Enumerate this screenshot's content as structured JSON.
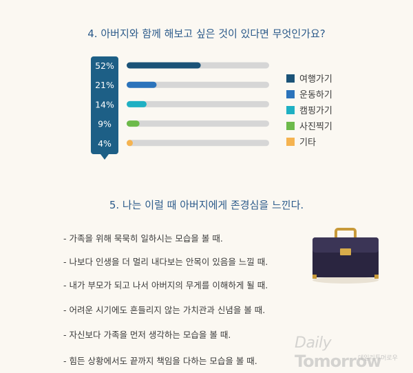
{
  "section4": {
    "title": "4. 아버지와 함께 해보고 싶은 것이 있다면 무엇인가요?"
  },
  "chart_data": {
    "type": "bar",
    "orientation": "horizontal",
    "title": "4. 아버지와 함께 해보고 싶은 것이 있다면 무엇인가요?",
    "categories": [
      "여행가기",
      "운동하기",
      "캠핑가기",
      "사진찍기",
      "기타"
    ],
    "values": [
      52,
      21,
      14,
      9,
      4
    ],
    "value_labels": [
      "52%",
      "21%",
      "14%",
      "9%",
      "4%"
    ],
    "colors": [
      "#1b5378",
      "#2b73bb",
      "#1fb0c3",
      "#6dba4a",
      "#f5b350"
    ],
    "track_color": "#d6d6d6",
    "label_box_color": "#1d5f86",
    "xlim": [
      0,
      100
    ],
    "legend_position": "right",
    "grid": false
  },
  "section5": {
    "title": "5. 나는 이럴 때 아버지에게 존경심을 느낀다.",
    "items": [
      "- 가족을 위해 묵묵히 일하시는 모습을 볼 때.",
      "- 나보다 인생을 더 멀리 내다보는 안목이 있음을 느낄 때.",
      "- 내가 부모가 되고 나서 아버지의 무게를 이해하게 될 때.",
      "- 어려운 시기에도 흔들리지 않는 가치관과 신념을 볼 때.",
      "- 자신보다 가족을 먼저 생각하는 모습을 볼 때.",
      "- 힘든 상황에서도 끝까지 책임을 다하는 모습을 볼 때."
    ]
  },
  "illustration": {
    "icon": "briefcase-icon"
  },
  "watermark": {
    "part1": "Daily",
    "part2": "Tomorrow",
    "sub": "데일리투머로우"
  }
}
